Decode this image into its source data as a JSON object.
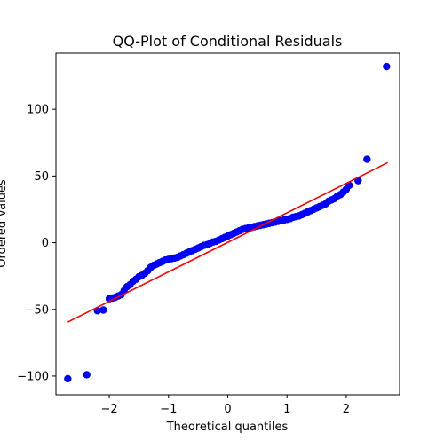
{
  "chart_data": {
    "type": "scatter",
    "title": "QQ-Plot of Conditional Residuals",
    "xlabel": "Theoretical quantiles",
    "ylabel": "Ordered Values",
    "xlim": [
      -2.9,
      2.9
    ],
    "ylim": [
      -114,
      142
    ],
    "xticks": [
      -2,
      -1,
      0,
      1,
      2
    ],
    "yticks": [
      -100,
      -50,
      0,
      50,
      100
    ],
    "grid": false,
    "point_color": "#0000ff",
    "line_color": "#ff0000",
    "reference_line": {
      "x": [
        -2.7,
        2.7
      ],
      "y": [
        -59.5,
        60
      ]
    },
    "points": {
      "x": [
        -2.7,
        -2.38,
        -2.2,
        -2.1,
        -2.0,
        -1.95,
        -1.9,
        -1.85,
        -1.8,
        -1.75,
        -1.7,
        -1.65,
        -1.6,
        -1.55,
        -1.5,
        -1.45,
        -1.4,
        -1.35,
        -1.3,
        -1.25,
        -1.2,
        -1.15,
        -1.1,
        -1.05,
        -1.0,
        -0.95,
        -0.9,
        -0.85,
        -0.8,
        -0.75,
        -0.7,
        -0.65,
        -0.6,
        -0.55,
        -0.5,
        -0.45,
        -0.4,
        -0.35,
        -0.3,
        -0.25,
        -0.2,
        -0.15,
        -0.1,
        -0.05,
        0.0,
        0.05,
        0.1,
        0.15,
        0.2,
        0.25,
        0.3,
        0.35,
        0.4,
        0.45,
        0.5,
        0.55,
        0.6,
        0.65,
        0.7,
        0.75,
        0.8,
        0.85,
        0.9,
        0.95,
        1.0,
        1.05,
        1.1,
        1.15,
        1.2,
        1.25,
        1.3,
        1.35,
        1.4,
        1.45,
        1.5,
        1.55,
        1.6,
        1.65,
        1.7,
        1.75,
        1.8,
        1.85,
        1.9,
        1.95,
        2.0,
        2.05,
        2.2,
        2.35,
        2.68
      ],
      "y": [
        -102,
        -99,
        -51,
        -50.5,
        -42,
        -41.5,
        -41,
        -40,
        -39,
        -36,
        -33,
        -31.5,
        -29,
        -27.5,
        -25.5,
        -24.5,
        -23,
        -21,
        -18.5,
        -17,
        -16,
        -15,
        -14,
        -13,
        -12.5,
        -12,
        -11.5,
        -11,
        -10,
        -9,
        -8,
        -7,
        -6,
        -5,
        -4,
        -3,
        -2,
        -1.5,
        -0.5,
        0.5,
        1,
        2,
        3,
        4,
        5,
        6,
        7,
        8,
        9,
        10,
        10.5,
        11,
        11.5,
        12,
        12.5,
        13,
        13.5,
        14,
        14.5,
        15,
        15.5,
        16,
        16.5,
        17,
        17.5,
        18,
        19,
        19.5,
        20,
        21,
        22,
        23,
        24,
        25,
        26,
        27,
        28,
        29,
        31,
        32,
        33,
        35,
        36,
        38,
        40,
        43,
        46.5,
        62.5,
        132
      ]
    }
  }
}
